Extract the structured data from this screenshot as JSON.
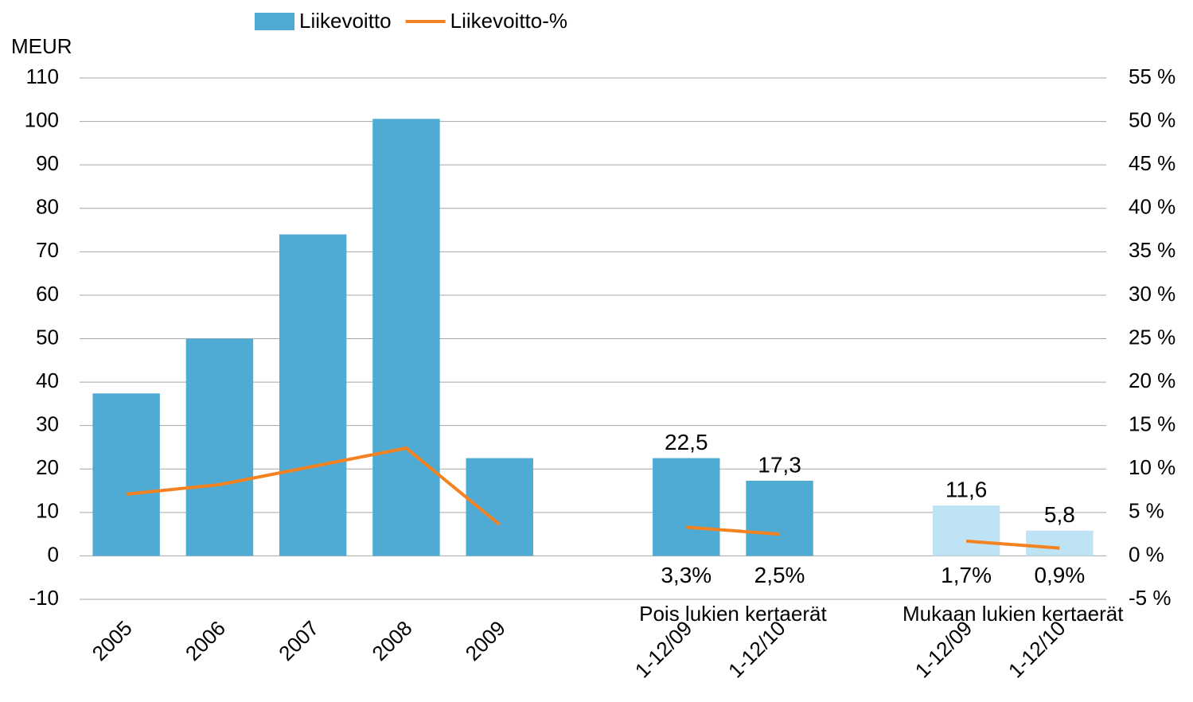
{
  "chart_data": {
    "type": "bar_line",
    "y_axis_label": "MEUR",
    "categories": [
      "2005",
      "2006",
      "2007",
      "2008",
      "2009",
      null,
      "1-12/09",
      "1-12/10",
      null,
      "1-12/09",
      "1-12/10"
    ],
    "series": [
      {
        "name": "Liikevoitto",
        "type": "bar",
        "color": "#4fabd3",
        "colors": [
          "#4fabd3",
          "#4fabd3",
          "#4fabd3",
          "#4fabd3",
          "#4fabd3",
          null,
          "#4fabd3",
          "#4fabd3",
          null,
          "#bde3f5",
          "#bde3f5"
        ],
        "values": [
          37.4,
          50,
          74,
          100.6,
          22.5,
          null,
          22.5,
          17.3,
          null,
          11.6,
          5.8
        ],
        "value_labels": [
          null,
          null,
          null,
          null,
          null,
          null,
          "22,5",
          "17,3",
          null,
          "11,6",
          "5,8"
        ]
      },
      {
        "name": "Liikevoitto-%",
        "type": "line",
        "axis": "y2",
        "color": "#f58220",
        "values": [
          7.1,
          8.2,
          10.3,
          12.4,
          3.6,
          null,
          3.3,
          2.5,
          null,
          1.7,
          0.9
        ],
        "value_labels": [
          null,
          null,
          null,
          null,
          null,
          null,
          "3,3%",
          "2,5%",
          null,
          "1,7%",
          "0,9%"
        ]
      }
    ],
    "annotations": [
      {
        "text": "Pois lukien kertaerät",
        "categories": [
          6,
          7
        ]
      },
      {
        "text": "Mukaan lukien kertaerät",
        "categories": [
          9,
          10
        ]
      }
    ],
    "ylim": [
      -10,
      110
    ],
    "yticks": [
      -10,
      0,
      10,
      20,
      30,
      40,
      50,
      60,
      70,
      80,
      90,
      100,
      110
    ],
    "y2lim": [
      -5,
      55
    ],
    "y2ticks": [
      {
        "value": -5,
        "label": "-5 %"
      },
      {
        "value": 0,
        "label": "0 %"
      },
      {
        "value": 5,
        "label": "5 %"
      },
      {
        "value": 10,
        "label": "10 %"
      },
      {
        "value": 15,
        "label": "15 %"
      },
      {
        "value": 20,
        "label": "20 %"
      },
      {
        "value": 25,
        "label": "25 %"
      },
      {
        "value": 30,
        "label": "30 %"
      },
      {
        "value": 35,
        "label": "35 %"
      },
      {
        "value": 40,
        "label": "40 %"
      },
      {
        "value": 45,
        "label": "45 %"
      },
      {
        "value": 50,
        "label": "50 %"
      },
      {
        "value": 55,
        "label": "55 %"
      }
    ],
    "grid": true,
    "legend": "top"
  }
}
